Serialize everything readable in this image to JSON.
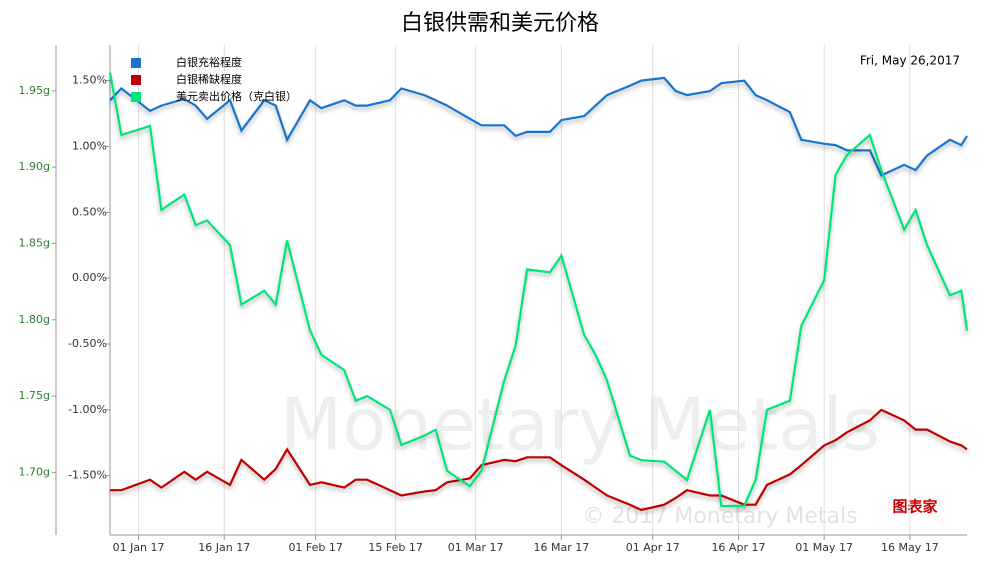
{
  "chart_data": {
    "type": "line",
    "title": "白银供需和美元价格",
    "date_label": "Fri, May 26,2017",
    "watermark": "Monetary Metals",
    "watermark_small": "© 2017 Monetary Metals",
    "logo": "图表家",
    "grid": "x",
    "legend": "upper left",
    "x": [
      "2016-12-27",
      "2016-12-29",
      "2017-01-03",
      "2017-01-05",
      "2017-01-09",
      "2017-01-11",
      "2017-01-13",
      "2017-01-17",
      "2017-01-19",
      "2017-01-23",
      "2017-01-25",
      "2017-01-27",
      "2017-01-31",
      "2017-02-02",
      "2017-02-06",
      "2017-02-08",
      "2017-02-10",
      "2017-02-14",
      "2017-02-16",
      "2017-02-20",
      "2017-02-22",
      "2017-02-24",
      "2017-02-28",
      "2017-03-02",
      "2017-03-06",
      "2017-03-08",
      "2017-03-10",
      "2017-03-14",
      "2017-03-16",
      "2017-03-20",
      "2017-03-22",
      "2017-03-24",
      "2017-03-28",
      "2017-03-30",
      "2017-04-03",
      "2017-04-05",
      "2017-04-07",
      "2017-04-11",
      "2017-04-13",
      "2017-04-17",
      "2017-04-19",
      "2017-04-21",
      "2017-04-25",
      "2017-04-27",
      "2017-05-01",
      "2017-05-03",
      "2017-05-05",
      "2017-05-09",
      "2017-05-11",
      "2017-05-15",
      "2017-05-17",
      "2017-05-19",
      "2017-05-23",
      "2017-05-25",
      "2017-05-26"
    ],
    "xlim": [
      "2016-12-27",
      "2017-05-26"
    ],
    "xticks": [
      {
        "value": "2017-01-01",
        "label": "01 Jan 17"
      },
      {
        "value": "2017-01-16",
        "label": "16 Jan 17"
      },
      {
        "value": "2017-02-01",
        "label": "01 Feb 17"
      },
      {
        "value": "2017-02-15",
        "label": "15 Feb 17"
      },
      {
        "value": "2017-03-01",
        "label": "01 Mar 17"
      },
      {
        "value": "2017-03-16",
        "label": "16 Mar 17"
      },
      {
        "value": "2017-04-01",
        "label": "01 Apr 17"
      },
      {
        "value": "2017-04-16",
        "label": "16 Apr 17"
      },
      {
        "value": "2017-05-01",
        "label": "01 May 17"
      },
      {
        "value": "2017-05-16",
        "label": "16 May 17"
      }
    ],
    "ylim": [
      -1.95,
      1.77
    ],
    "yticks": [
      {
        "value": 1.5,
        "label": "1.50%"
      },
      {
        "value": 1.0,
        "label": "1.00%"
      },
      {
        "value": 0.5,
        "label": "0.50%"
      },
      {
        "value": 0,
        "label": "0.00%"
      },
      {
        "value": -0.5,
        "label": "-0.50%"
      },
      {
        "value": -1.0,
        "label": "-1.00%"
      },
      {
        "value": -1.5,
        "label": "-1.50%"
      }
    ],
    "y2lim": [
      1.659,
      1.98
    ],
    "y2ticks": [
      {
        "value": 1.95,
        "label": "1.95g"
      },
      {
        "value": 1.9,
        "label": "1.90g"
      },
      {
        "value": 1.85,
        "label": "1.85g"
      },
      {
        "value": 1.8,
        "label": "1.80g"
      },
      {
        "value": 1.75,
        "label": "1.75g"
      },
      {
        "value": 1.7,
        "label": "1.70g"
      }
    ],
    "series": [
      {
        "name": "白银充裕程度",
        "color": "#1874cd",
        "values": [
          1.35,
          1.44,
          1.27,
          1.31,
          1.36,
          1.31,
          1.21,
          1.35,
          1.12,
          1.35,
          1.31,
          1.05,
          1.35,
          1.29,
          1.35,
          1.31,
          1.31,
          1.35,
          1.44,
          1.39,
          1.35,
          1.31,
          1.21,
          1.16,
          1.16,
          1.08,
          1.11,
          1.11,
          1.2,
          1.23,
          1.31,
          1.39,
          1.46,
          1.5,
          1.52,
          1.42,
          1.39,
          1.42,
          1.48,
          1.5,
          1.39,
          1.35,
          1.26,
          1.05,
          1.02,
          1.01,
          0.97,
          0.97,
          0.78,
          0.86,
          0.82,
          0.93,
          1.05,
          1.01,
          1.08
        ]
      },
      {
        "name": "白银稀缺程度",
        "color": "#c00000",
        "values": [
          -1.61,
          -1.61,
          -1.53,
          -1.59,
          -1.47,
          -1.53,
          -1.47,
          -1.57,
          -1.38,
          -1.53,
          -1.45,
          -1.3,
          -1.57,
          -1.55,
          -1.59,
          -1.53,
          -1.53,
          -1.61,
          -1.65,
          -1.62,
          -1.61,
          -1.55,
          -1.52,
          -1.42,
          -1.38,
          -1.39,
          -1.36,
          -1.36,
          -1.42,
          -1.53,
          -1.59,
          -1.65,
          -1.72,
          -1.76,
          -1.72,
          -1.67,
          -1.61,
          -1.65,
          -1.65,
          -1.72,
          -1.72,
          -1.57,
          -1.49,
          -1.42,
          -1.27,
          -1.23,
          -1.17,
          -1.08,
          -1.0,
          -1.08,
          -1.15,
          -1.15,
          -1.24,
          -1.27,
          -1.3
        ]
      },
      {
        "name": "美元卖出价格（克白银）",
        "color": "#00e676",
        "axis": "y2",
        "values": [
          1.962,
          1.921,
          1.927,
          1.872,
          1.882,
          1.862,
          1.865,
          1.849,
          1.81,
          1.819,
          1.81,
          1.852,
          1.793,
          1.777,
          1.767,
          1.747,
          1.75,
          1.741,
          1.718,
          1.724,
          1.728,
          1.701,
          1.691,
          1.701,
          1.76,
          1.783,
          1.833,
          1.831,
          1.842,
          1.79,
          1.777,
          1.76,
          1.711,
          1.708,
          1.707,
          1.701,
          1.695,
          1.741,
          1.678,
          1.678,
          1.695,
          1.741,
          1.747,
          1.796,
          1.826,
          1.895,
          1.908,
          1.921,
          1.898,
          1.859,
          1.872,
          1.849,
          1.816,
          1.819,
          1.793
        ]
      }
    ]
  }
}
